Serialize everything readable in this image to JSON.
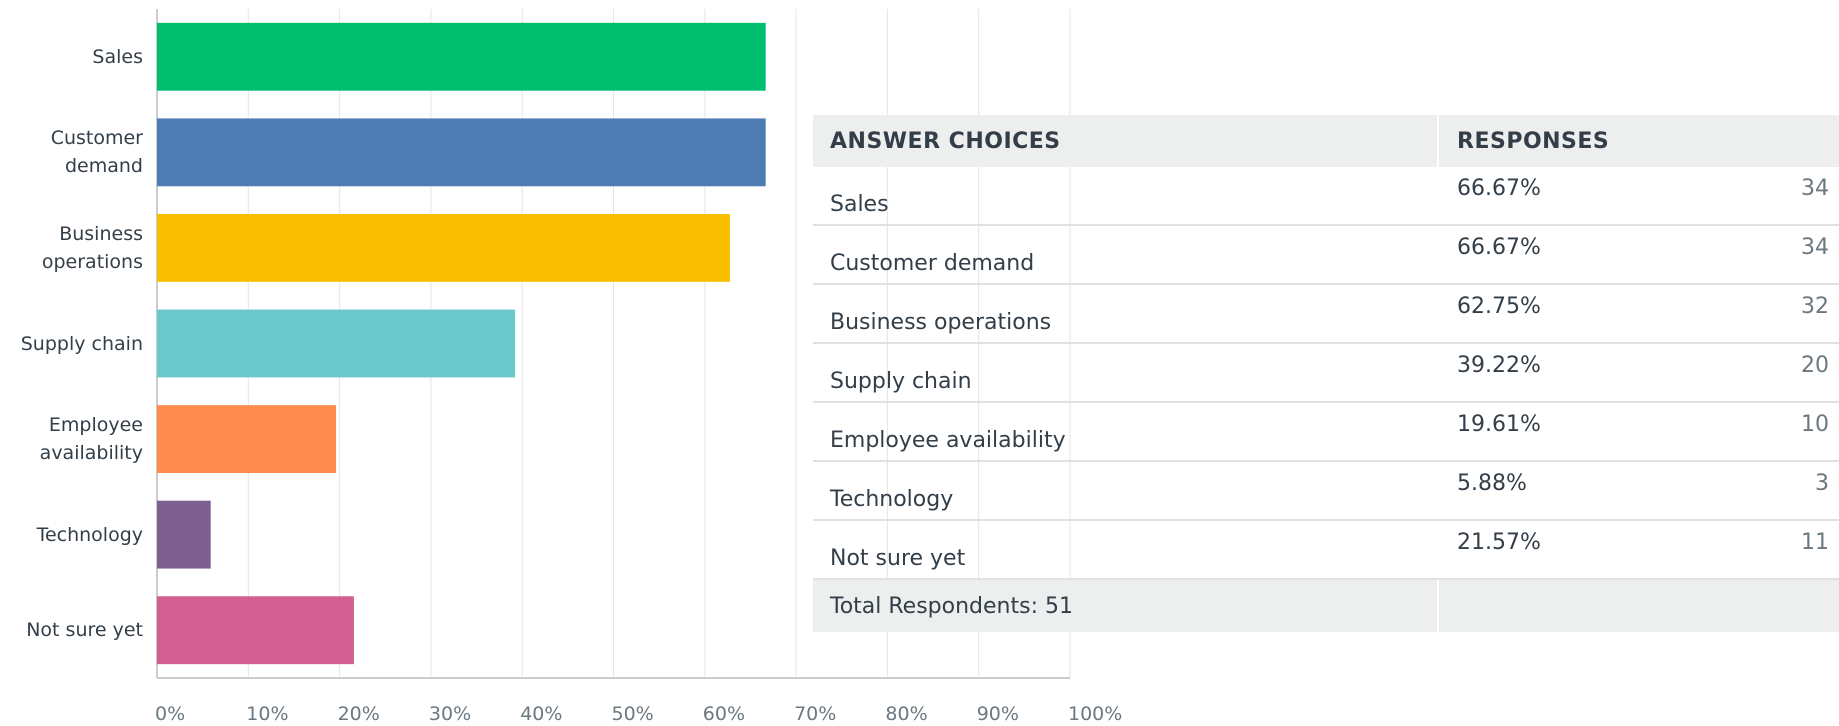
{
  "chart_data": {
    "type": "barh",
    "categories": [
      "Sales",
      "Customer demand",
      "Business operations",
      "Supply chain",
      "Employee availability",
      "Technology",
      "Not sure yet"
    ],
    "values": [
      66.67,
      66.67,
      62.75,
      39.22,
      19.61,
      5.88,
      21.57
    ],
    "value_labels": [
      "66.67%",
      "66.67%",
      "62.75%",
      "39.22%",
      "19.61%",
      "5.88%",
      "21.57%"
    ],
    "colors": [
      "#00bf6f",
      "#507cb6",
      "#f9be00",
      "#6bc8cd",
      "#ff8b4f",
      "#7d5e90",
      "#d25f90"
    ],
    "xlim": [
      0,
      100
    ],
    "xticks": [
      {
        "value": 0,
        "label": "0%"
      },
      {
        "value": 10,
        "label": "10%"
      },
      {
        "value": 20,
        "label": "20%"
      },
      {
        "value": 30,
        "label": "30%"
      },
      {
        "value": 40,
        "label": "40%"
      },
      {
        "value": 50,
        "label": "50%"
      },
      {
        "value": 60,
        "label": "60%"
      },
      {
        "value": 70,
        "label": "70%"
      },
      {
        "value": 80,
        "label": "80%"
      },
      {
        "value": 90,
        "label": "90%"
      },
      {
        "value": 100,
        "label": "100%"
      }
    ],
    "grid": true
  },
  "table": {
    "headers": [
      "ANSWER CHOICES",
      "RESPONSES"
    ],
    "counts": [
      34,
      34,
      32,
      20,
      10,
      3,
      11
    ],
    "total": "Total Respondents: 51"
  }
}
